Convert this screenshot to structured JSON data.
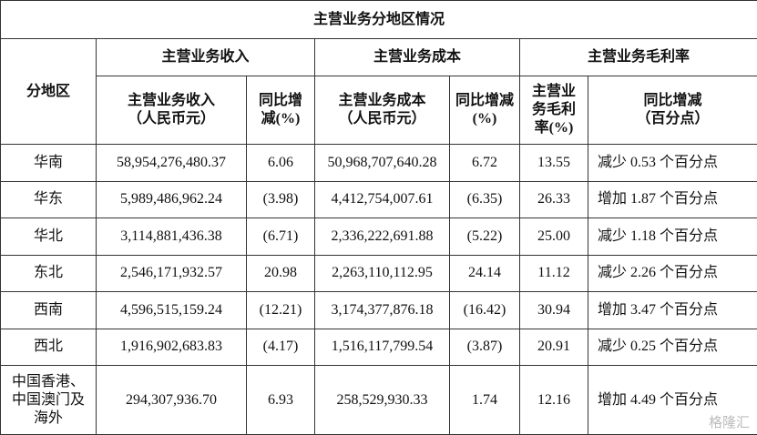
{
  "table": {
    "title": "主营业务分地区情况",
    "region_header": "分地区",
    "groups": [
      "主营业务收入",
      "主营业务成本",
      "主营业务毛利率"
    ],
    "subheaders": [
      [
        "主营业务收入",
        "（人民币元）"
      ],
      [
        "同比增",
        "减(%)"
      ],
      [
        "主营业务成本",
        "（人民币元）"
      ],
      [
        "同比增减",
        "(%)"
      ],
      [
        "主营业",
        "务毛利",
        "率(%)"
      ],
      [
        "同比增减",
        "（百分点）"
      ]
    ],
    "rows": [
      [
        [
          "华南"
        ],
        "58,954,276,480.37",
        "6.06",
        "50,968,707,640.28",
        "6.72",
        "13.55",
        "减少 0.53 个百分点"
      ],
      [
        [
          "华东"
        ],
        "5,989,486,962.24",
        "(3.98)",
        "4,412,754,007.61",
        "(6.35)",
        "26.33",
        "增加 1.87 个百分点"
      ],
      [
        [
          "华北"
        ],
        "3,114,881,436.38",
        "(6.71)",
        "2,336,222,691.88",
        "(5.22)",
        "25.00",
        "减少 1.18 个百分点"
      ],
      [
        [
          "东北"
        ],
        "2,546,171,932.57",
        "20.98",
        "2,263,110,112.95",
        "24.14",
        "11.12",
        "减少 2.26 个百分点"
      ],
      [
        [
          "西南"
        ],
        "4,596,515,159.24",
        "(12.21)",
        "3,174,377,876.18",
        "(16.42)",
        "30.94",
        "增加 3.47 个百分点"
      ],
      [
        [
          "西北"
        ],
        "1,916,902,683.83",
        "(4.17)",
        "1,516,117,799.54",
        "(3.87)",
        "20.91",
        "减少 0.25 个百分点"
      ],
      [
        [
          "中国香港、",
          "中国澳门及",
          "海外"
        ],
        "294,307,936.70",
        "6.93",
        "258,529,930.33",
        "1.74",
        "12.16",
        "增加 4.49 个百分点"
      ]
    ],
    "watermark": "格隆汇"
  }
}
